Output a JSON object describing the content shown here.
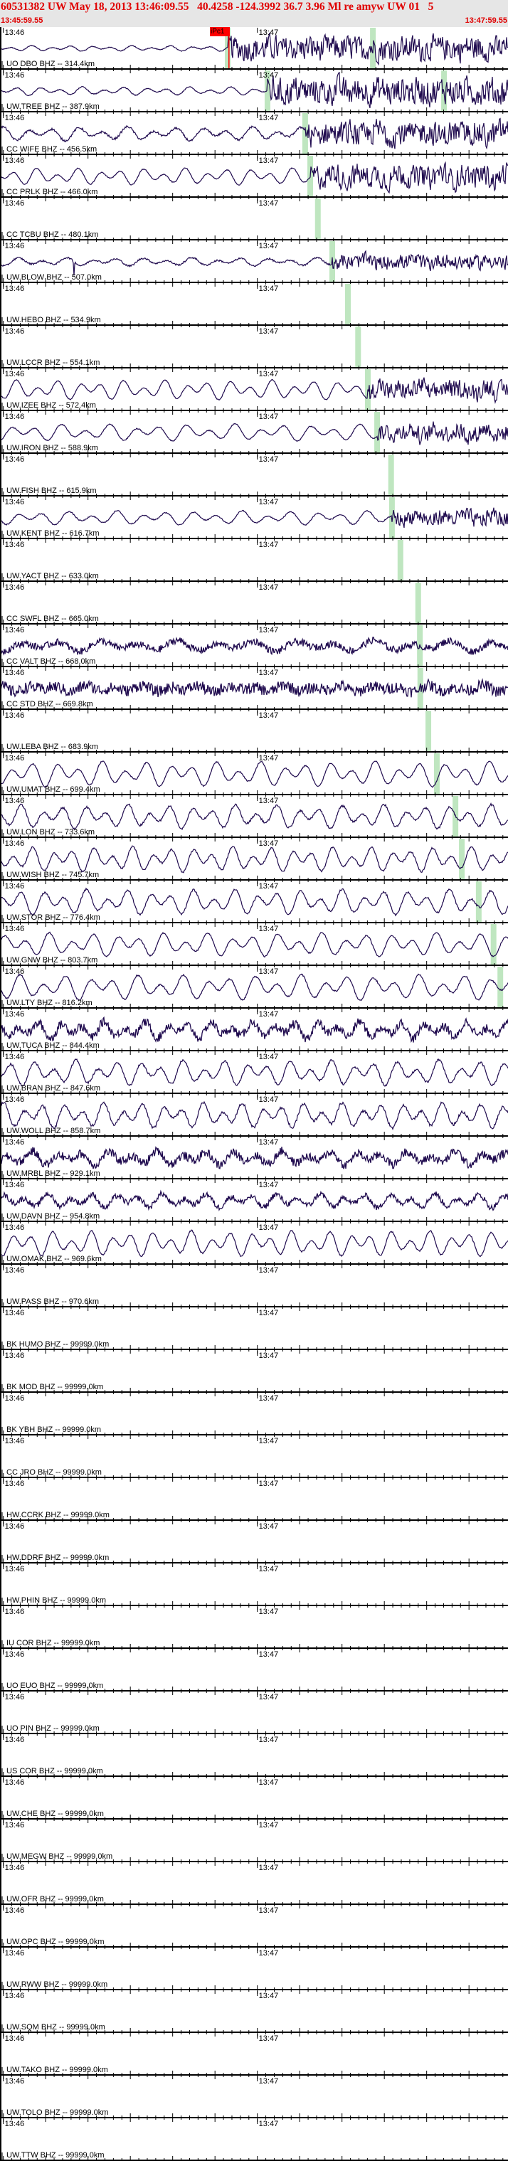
{
  "header": {
    "title": "60531382 UW May 18, 2013 13:46:09.55   40.4258 -124.3992 36.7 3.96 Ml re amyw UW 01   5",
    "start_time": "13:45:59.55",
    "end_time": "13:47:59.55"
  },
  "axis": {
    "minute_labels": [
      "13:46",
      "13:47"
    ]
  },
  "colors": {
    "trace": "#1f0a4e",
    "predicted_arrival": "#bfe6c0",
    "pick": "#ff0000",
    "header_text": "#e00000",
    "header_bg": "#e6e6e6"
  },
  "pick": {
    "label": "iPc1",
    "station_index": 0,
    "time": "13:46:53.3"
  },
  "stations": [
    {
      "label": "UO DBO BHZ -- 314.4km",
      "trace": true,
      "arrivals": [
        "13:46:53.0",
        "13:47:27.3"
      ]
    },
    {
      "label": "UW.TREE BHZ -- 387.9km",
      "trace": true,
      "arrivals": [
        "13:47:02.4",
        "13:47:44.1"
      ]
    },
    {
      "label": "CC WIFE BHZ -- 456.5km",
      "trace": true,
      "arrivals": [
        "13:47:11.3"
      ]
    },
    {
      "label": "CC PRLK BHZ -- 466.0km",
      "trace": true,
      "arrivals": [
        "13:47:12.5"
      ]
    },
    {
      "label": "CC TCBU BHZ -- 480.1km",
      "trace": false,
      "arrivals": [
        "13:47:14.3"
      ]
    },
    {
      "label": "UW.BLOW BHZ -- 507.0km",
      "trace": true,
      "arrivals": [
        "13:47:17.7"
      ]
    },
    {
      "label": "UW.HEBO BHZ -- 534.9km",
      "trace": false,
      "arrivals": [
        "13:47:21.4"
      ]
    },
    {
      "label": "UW.LCCR BHZ -- 554.1km",
      "trace": false,
      "arrivals": [
        "13:47:23.8"
      ]
    },
    {
      "label": "UW.IZEE BHZ -- 572.4km",
      "trace": true,
      "arrivals": [
        "13:47:26.1"
      ]
    },
    {
      "label": "UW.IRON BHZ -- 588.9km",
      "trace": true,
      "arrivals": [
        "13:47:28.3"
      ]
    },
    {
      "label": "UW.FISH BHZ -- 615.9km",
      "trace": false,
      "arrivals": [
        "13:47:31.6"
      ]
    },
    {
      "label": "UW.KENT BHZ -- 616.7km",
      "trace": true,
      "arrivals": [
        "13:47:31.8"
      ]
    },
    {
      "label": "UW.YACT BHZ -- 633.0km",
      "trace": false,
      "arrivals": [
        "13:47:33.8"
      ]
    },
    {
      "label": "CC SWFL BHZ -- 665.0km",
      "trace": false,
      "arrivals": [
        "13:47:38.0"
      ]
    },
    {
      "label": "CC VALT BHZ -- 668.0km",
      "trace": true,
      "arrivals": [
        "13:47:38.4"
      ]
    },
    {
      "label": "CC STD BHZ -- 669.8km",
      "trace": true,
      "arrivals": [
        "13:47:38.5"
      ]
    },
    {
      "label": "UW.LEBA BHZ -- 683.9km",
      "trace": false,
      "arrivals": [
        "13:47:40.4"
      ]
    },
    {
      "label": "UW.UMAT BHZ -- 699.4km",
      "trace": true,
      "arrivals": [
        "13:47:42.4"
      ]
    },
    {
      "label": "UW.LON BHZ -- 733.6km",
      "trace": true,
      "arrivals": [
        "13:47:46.8"
      ]
    },
    {
      "label": "UW.WISH BHZ -- 745.7km",
      "trace": true,
      "arrivals": [
        "13:47:48.3"
      ]
    },
    {
      "label": "UW.STOR BHZ -- 776.4km",
      "trace": true,
      "arrivals": [
        "13:47:52.3"
      ]
    },
    {
      "label": "UW.GNW BHZ -- 803.7km",
      "trace": true,
      "arrivals": [
        "13:47:55.8"
      ]
    },
    {
      "label": "UW.LTY BHZ -- 816.2km",
      "trace": true,
      "arrivals": [
        "13:47:57.4"
      ]
    },
    {
      "label": "UW.TUCA BHZ -- 844.4km",
      "trace": true,
      "arrivals": []
    },
    {
      "label": "UW.BRAN BHZ -- 847.6km",
      "trace": true,
      "arrivals": []
    },
    {
      "label": "UW.WOLL BHZ -- 858.7km",
      "trace": true,
      "arrivals": []
    },
    {
      "label": "UW.MRBL BHZ -- 929.1km",
      "trace": true,
      "arrivals": []
    },
    {
      "label": "UW.DAVN BHZ -- 954.8km",
      "trace": true,
      "arrivals": []
    },
    {
      "label": "UW.OMAK BHZ -- 969.6km",
      "trace": true,
      "arrivals": []
    },
    {
      "label": "UW.PASS BHZ -- 970.6km",
      "trace": false,
      "arrivals": []
    },
    {
      "label": "BK HUMO BHZ -- 99999.0km",
      "trace": false,
      "arrivals": []
    },
    {
      "label": "BK MOD BHZ -- 99999.0km",
      "trace": false,
      "arrivals": []
    },
    {
      "label": "BK YBH BHZ -- 99999.0km",
      "trace": false,
      "arrivals": []
    },
    {
      "label": "CC JRO BHZ -- 99999.0km",
      "trace": false,
      "arrivals": []
    },
    {
      "label": "HW.CCRK BHZ -- 99999.0km",
      "trace": false,
      "arrivals": []
    },
    {
      "label": "HW.DDRF BHZ -- 99999.0km",
      "trace": false,
      "arrivals": []
    },
    {
      "label": "HW.PHIN BHZ -- 99999.0km",
      "trace": false,
      "arrivals": []
    },
    {
      "label": "IU COR BHZ -- 99999.0km",
      "trace": false,
      "arrivals": []
    },
    {
      "label": "UO EUO BHZ -- 99999.0km",
      "trace": false,
      "arrivals": []
    },
    {
      "label": "UO PIN BHZ -- 99999.0km",
      "trace": false,
      "arrivals": []
    },
    {
      "label": "US COR BHZ -- 99999.0km",
      "trace": false,
      "arrivals": []
    },
    {
      "label": "UW.CHE BHZ -- 99999.0km",
      "trace": false,
      "arrivals": []
    },
    {
      "label": "UW.MEGW BHZ -- 99999.0km",
      "trace": false,
      "arrivals": []
    },
    {
      "label": "UW.OFR BHZ -- 99999.0km",
      "trace": false,
      "arrivals": []
    },
    {
      "label": "UW.OPC BHZ -- 99999.0km",
      "trace": false,
      "arrivals": []
    },
    {
      "label": "UW.RWW BHZ -- 99999.0km",
      "trace": false,
      "arrivals": []
    },
    {
      "label": "UW.SQM BHZ -- 99999.0km",
      "trace": false,
      "arrivals": []
    },
    {
      "label": "UW.TAKO BHZ -- 99999.0km",
      "trace": false,
      "arrivals": []
    },
    {
      "label": "UW.TOLO BHZ -- 99999.0km",
      "trace": false,
      "arrivals": []
    },
    {
      "label": "UW.TTW BHZ -- 99999.0km",
      "trace": false,
      "arrivals": []
    }
  ]
}
